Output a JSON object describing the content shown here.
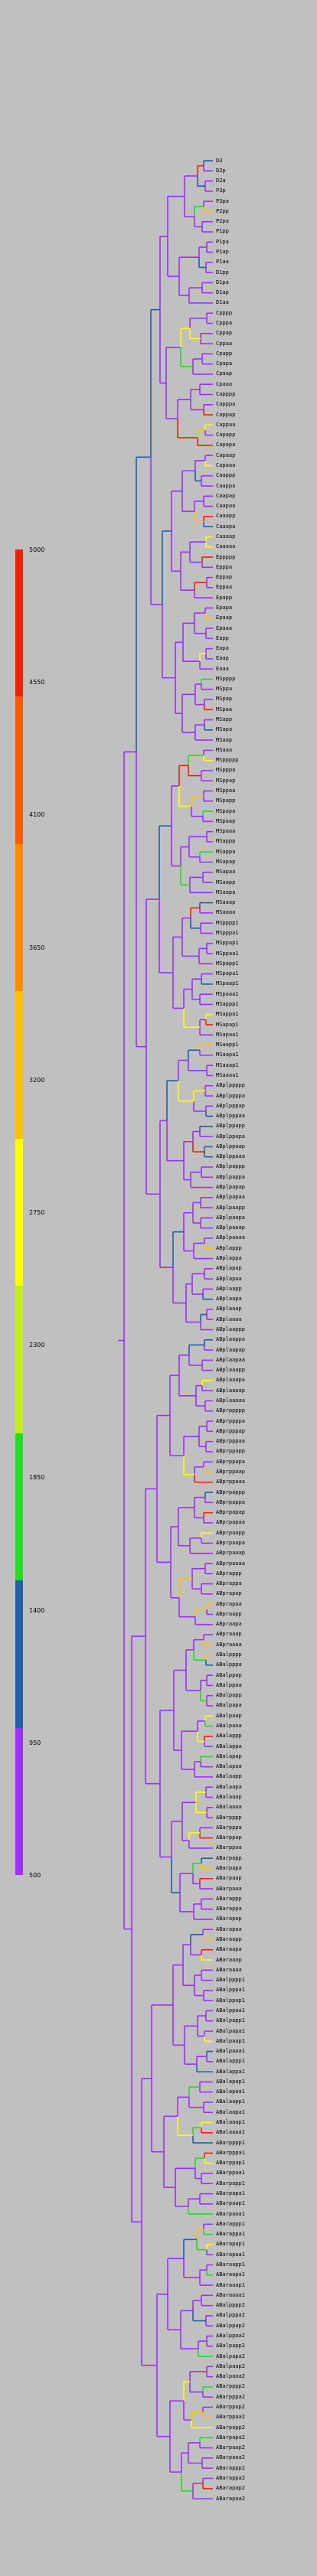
{
  "scale_legend": {
    "colors": [
      "#9b30ff",
      "#1f5fa8",
      "#22dd22",
      "#bfef1f",
      "#ffff00",
      "#ffc000",
      "#ff8c00",
      "#ff5a00",
      "#ee2200"
    ],
    "ticks": [
      "5000",
      "4550",
      "4100",
      "3650",
      "3200",
      "2750",
      "2300",
      "1850",
      "1400",
      "950",
      "500"
    ]
  },
  "leaf_labels": [
    "D3",
    "D2p",
    "D2a",
    "P3p",
    "P3pa",
    "P2pp",
    "P2pa",
    "P1pp",
    "P1pa",
    "P1ap",
    "P1aa",
    "D1pp",
    "D1pa",
    "D1ap",
    "D1aa",
    "Cpppp",
    "Cpppa",
    "Cppap",
    "Cppaa",
    "Cpapp",
    "Cpapa",
    "Cpaap",
    "Cpaaa",
    "Capppp",
    "Capppa",
    "Cappap",
    "Cappaa",
    "Capapp",
    "Capapa",
    "Capaap",
    "Capaaa",
    "Caappp",
    "Caappa",
    "Caapap",
    "Caapaa",
    "Caaapp",
    "Caaapa",
    "Caaaap",
    "Caaaaa",
    "Eppppp",
    "Epppa",
    "Eppap",
    "Eppaa",
    "Epapp",
    "Epapa",
    "Epaap",
    "Epaaa",
    "Eapp",
    "Eapa",
    "Eaap",
    "Eaaa",
    "MSpppp",
    "MSppa",
    "MSpap",
    "MSpaa",
    "MSapp",
    "MSapa",
    "MSaap",
    "MSaaa",
    "MSppppp",
    "MSpppa",
    "MSppap",
    "MSppaa",
    "MSpapp",
    "MSpapa",
    "MSpaap",
    "MSpaaa",
    "MSappp",
    "MSappa",
    "MSapap",
    "MSapaa",
    "MSaapp",
    "MSaapa",
    "MSaaap",
    "MSaaaa",
    "MSpppp1",
    "MSpppa1",
    "MSppap1",
    "MSppaa1",
    "MSpapp1",
    "MSpapa1",
    "MSpaap1",
    "MSpaaa1",
    "MSappp1",
    "MSappa1",
    "MSapap1",
    "MSapaa1",
    "MSaapp1",
    "MSaapa1",
    "MSaaap1",
    "MSaaaa1",
    "ABplppppp",
    "ABplppppa",
    "ABplpppap",
    "ABplpppaa",
    "ABplppapp",
    "ABplppapa",
    "ABplppaap",
    "ABplppaaa",
    "ABplpappp",
    "ABplpappa",
    "ABplpapap",
    "ABplpapaa",
    "ABplpaapp",
    "ABplpaapa",
    "ABplpaaap",
    "ABplpaaaa",
    "ABplappp",
    "ABplappa",
    "ABplapap",
    "ABplapaa",
    "ABplaapp",
    "ABplaapa",
    "ABplaaap",
    "ABplaaaa",
    "ABplaappp",
    "ABplaappa",
    "ABplaapap",
    "ABplaapaa",
    "ABplaaapp",
    "ABplaaapa",
    "ABplaaaap",
    "ABplaaaaa",
    "ABprppppp",
    "ABprppppa",
    "ABprpppap",
    "ABprpppaa",
    "ABprppapp",
    "ABprppapa",
    "ABprppaap",
    "ABprppaaa",
    "ABprpappp",
    "ABprpappa",
    "ABprpapap",
    "ABprpapaa",
    "ABprpaapp",
    "ABprpaapa",
    "ABprpaaap",
    "ABprpaaaa",
    "ABprappp",
    "ABprappa",
    "ABprapap",
    "ABprapaa",
    "ABpraapp",
    "ABpraapa",
    "ABpraaap",
    "ABpraaaa",
    "ABalpppp",
    "ABalpppa",
    "ABalppap",
    "ABalppaa",
    "ABalpapp",
    "ABalpapa",
    "ABalpaap",
    "ABalpaaa",
    "ABalappp",
    "ABalappa",
    "ABalapap",
    "ABalapaa",
    "ABalaapp",
    "ABalaapa",
    "ABalaaap",
    "ABalaaaa",
    "ABarpppp",
    "ABarpppa",
    "ABarppap",
    "ABarppaa",
    "ABarpapp",
    "ABarpapa",
    "ABarpaap",
    "ABarpaaa",
    "ABarappp",
    "ABarappa",
    "ABarapap",
    "ABarapaa",
    "ABaraapp",
    "ABaraapa",
    "ABaraaap",
    "ABaraaaa",
    "ABalpppp1",
    "ABalpppa1",
    "ABalppap1",
    "ABalppaa1",
    "ABalpapp1",
    "ABalpapa1",
    "ABalpaap1",
    "ABalpaaa1",
    "ABalappp1",
    "ABalappa1",
    "ABalapap1",
    "ABalapaa1",
    "ABalaapp1",
    "ABalaapa1",
    "ABalaaap1",
    "ABalaaaa1",
    "ABarpppp1",
    "ABarpppa1",
    "ABarppap1",
    "ABarppaa1",
    "ABarpapp1",
    "ABarpapa1",
    "ABarpaap1",
    "ABarpaaa1",
    "ABarappp1",
    "ABarappa1",
    "ABarapap1",
    "ABarapaa1",
    "ABaraapp1",
    "ABaraapa1",
    "ABaraaap1",
    "ABaraaaa1",
    "ABalpppp2",
    "ABalpppa2",
    "ABalppap2",
    "ABalppaa2",
    "ABalpapp2",
    "ABalpapa2",
    "ABalpaap2",
    "ABalpaaa2",
    "ABarpppp2",
    "ABarpppa2",
    "ABarppap2",
    "ABarppaa2",
    "ABarpapp2",
    "ABarpapa2",
    "ABarpaap2",
    "ABarpaaa2",
    "ABarappp2",
    "ABarappa2",
    "ABarapap2",
    "ABarapaa2"
  ]
}
